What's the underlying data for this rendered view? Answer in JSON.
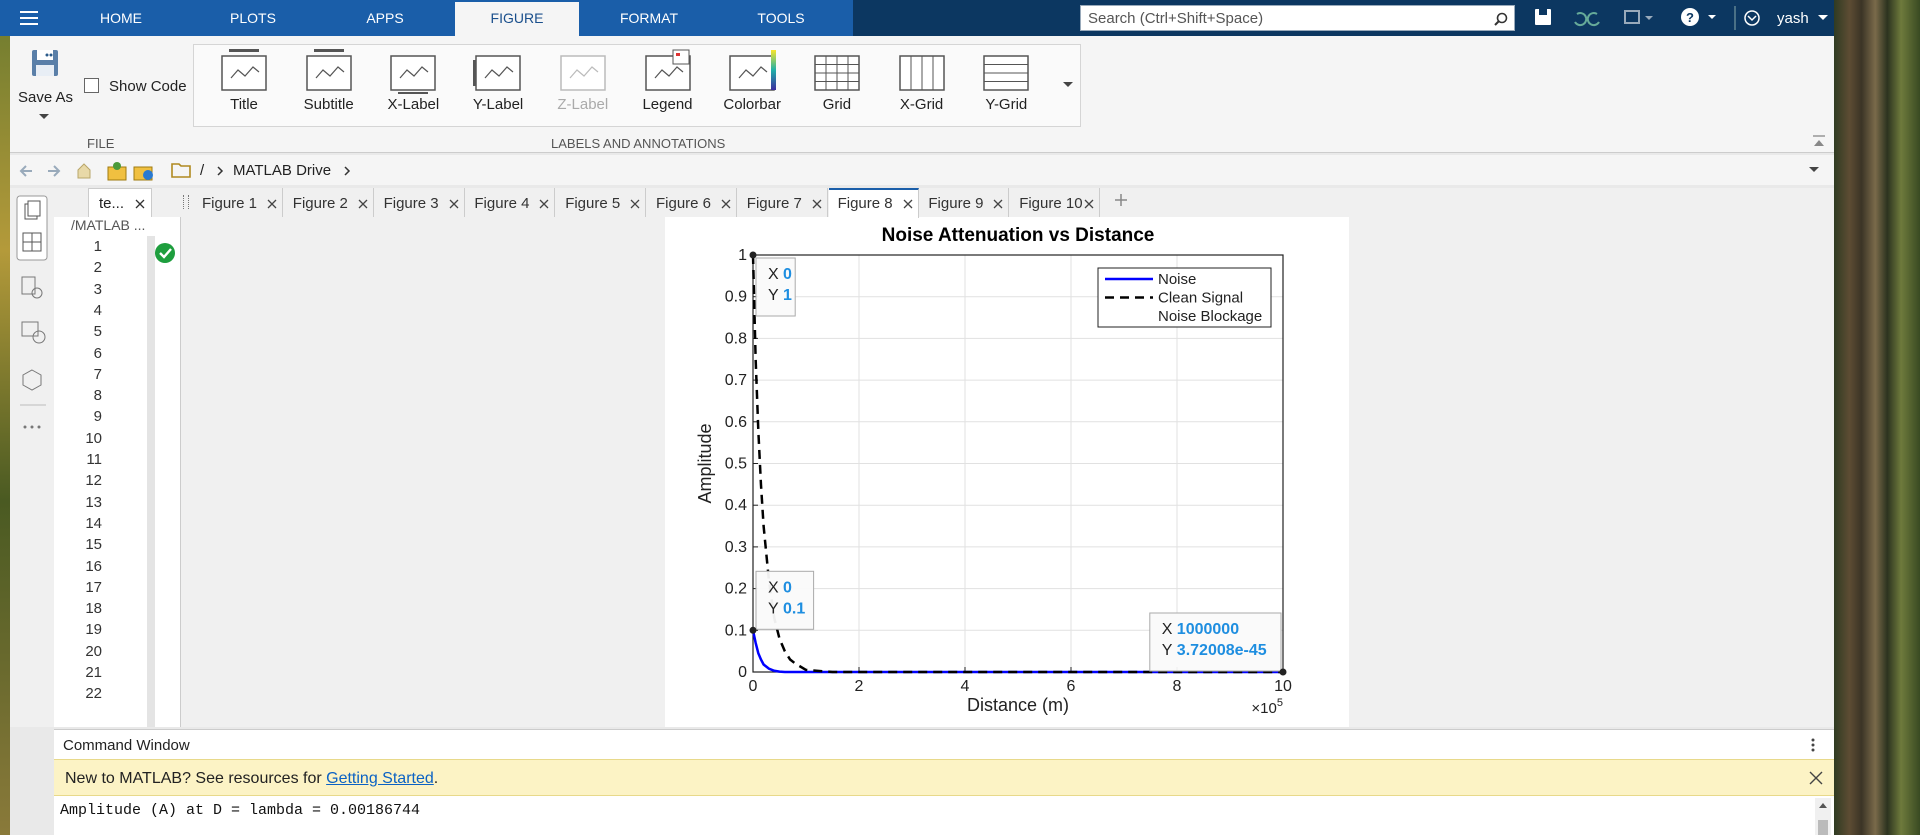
{
  "toolstrip": {
    "tabs": [
      "HOME",
      "PLOTS",
      "APPS",
      "FIGURE",
      "FORMAT",
      "TOOLS"
    ],
    "active_tab": "FIGURE",
    "search_placeholder": "Search (Ctrl+Shift+Space)",
    "user": "yash"
  },
  "ribbon": {
    "save_as": "Save As",
    "show_code": "Show Code",
    "file_section": "FILE",
    "labels_section": "LABELS AND ANNOTATIONS",
    "buttons": [
      {
        "label": "Title",
        "enabled": true
      },
      {
        "label": "Subtitle",
        "enabled": true
      },
      {
        "label": "X-Label",
        "enabled": true
      },
      {
        "label": "Y-Label",
        "enabled": true
      },
      {
        "label": "Z-Label",
        "enabled": false
      },
      {
        "label": "Legend",
        "enabled": true
      },
      {
        "label": "Colorbar",
        "enabled": true
      },
      {
        "label": "Grid",
        "enabled": true
      },
      {
        "label": "X-Grid",
        "enabled": true
      },
      {
        "label": "Y-Grid",
        "enabled": true
      }
    ]
  },
  "address": {
    "root": "/",
    "folder": "MATLAB Drive"
  },
  "editor": {
    "tab": "te...",
    "path": "/MATLAB ...",
    "line_numbers": [
      1,
      2,
      3,
      4,
      5,
      6,
      7,
      8,
      9,
      10,
      11,
      12,
      13,
      14,
      15,
      16,
      17,
      18,
      19,
      20,
      21,
      22
    ]
  },
  "figure_tabs": {
    "tabs": [
      "Figure 1",
      "Figure 2",
      "Figure 3",
      "Figure 4",
      "Figure 5",
      "Figure 6",
      "Figure 7",
      "Figure 8",
      "Figure 9",
      "Figure 10"
    ],
    "active": "Figure 8"
  },
  "chart_data": {
    "type": "line",
    "title": "Noise Attenuation vs Distance",
    "xlabel": "Distance (m)",
    "ylabel": "Amplitude",
    "x_multiplier": "×10",
    "x_exponent": "5",
    "x": [
      0,
      5000,
      10000,
      15000,
      20000,
      30000,
      40000,
      50000,
      60000,
      70000,
      80000,
      100000,
      150000,
      200000,
      300000,
      400000,
      600000,
      800000,
      1000000
    ],
    "series": [
      {
        "name": "Noise",
        "color": "#0000ff",
        "line_style": "solid",
        "values": [
          0.1,
          0.07,
          0.045,
          0.03,
          0.018,
          0.008,
          0.003,
          0.001,
          0,
          0,
          0,
          0,
          0,
          0,
          0,
          0,
          0,
          0,
          3.72008e-45
        ]
      },
      {
        "name": "Clean Signal",
        "color": "#000000",
        "line_style": "dashed",
        "values": [
          1,
          0.75,
          0.58,
          0.45,
          0.35,
          0.22,
          0.13,
          0.08,
          0.05,
          0.03,
          0.02,
          0.005,
          0,
          0,
          0,
          0,
          0,
          0,
          0
        ]
      },
      {
        "name": "Noise Blockage",
        "color": "#0000ff",
        "line_style": "none",
        "values": [
          0,
          0,
          0,
          0,
          0,
          0,
          0,
          0,
          0,
          0,
          0,
          0,
          0,
          0,
          0,
          0,
          0,
          0,
          0
        ]
      }
    ],
    "xlim": [
      0,
      1000000
    ],
    "xticks": [
      {
        "value": 0,
        "label": "0"
      },
      {
        "value": 200000,
        "label": "2"
      },
      {
        "value": 400000,
        "label": "4"
      },
      {
        "value": 600000,
        "label": "6"
      },
      {
        "value": 800000,
        "label": "8"
      },
      {
        "value": 1000000,
        "label": "10"
      }
    ],
    "ylim": [
      0,
      1
    ],
    "yticks": [
      0,
      0.1,
      0.2,
      0.3,
      0.4,
      0.5,
      0.6,
      0.7,
      0.8,
      0.9,
      1
    ],
    "grid": true,
    "legend": "upper right",
    "datatips": [
      {
        "x_label": "X",
        "x": 0,
        "y_label": "Y",
        "y": 1
      },
      {
        "x_label": "X",
        "x": 0,
        "y_label": "Y",
        "y": 0.1
      },
      {
        "x_label": "X",
        "x": 1000000,
        "y_label": "Y",
        "y": 3.72008e-45
      }
    ]
  },
  "command_window": {
    "title": "Command Window",
    "banner_text": "New to MATLAB? See resources for ",
    "banner_link": "Getting Started",
    "banner_end": ".",
    "output": [
      "Amplitude (A) at D = lambda = 0.00186744"
    ]
  }
}
